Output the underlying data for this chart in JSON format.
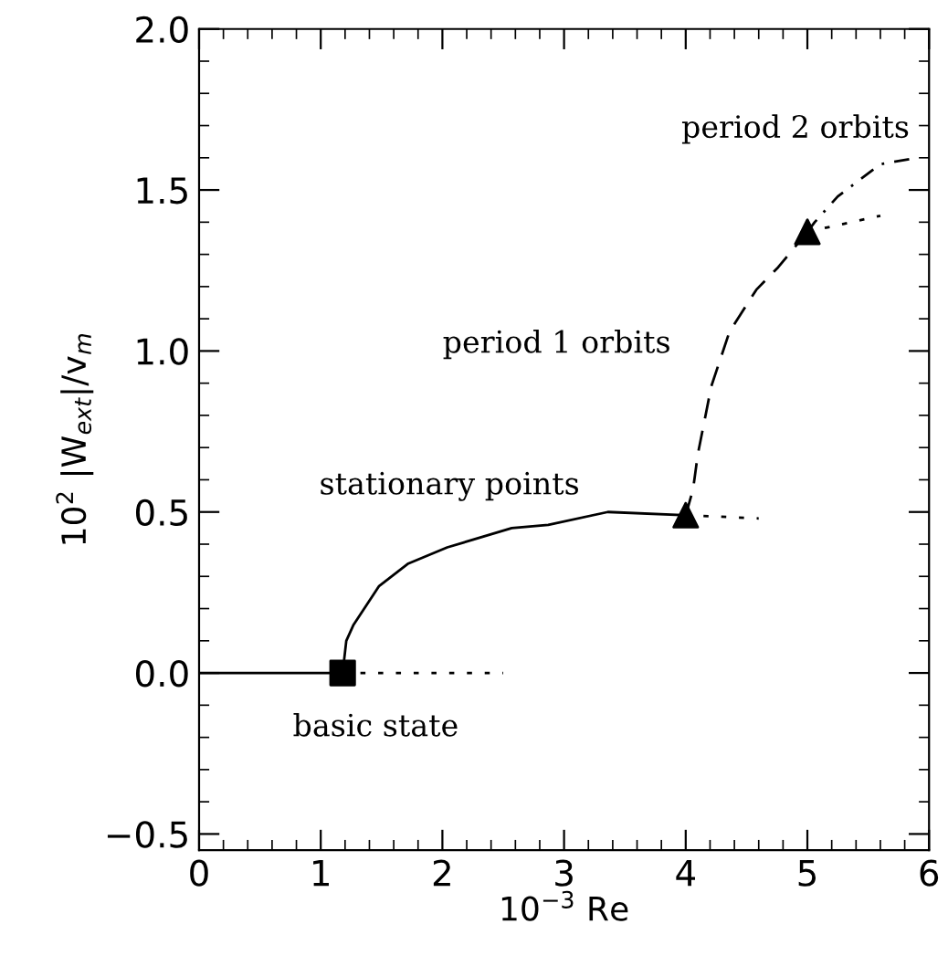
{
  "chart_data": {
    "type": "line",
    "xlabel": "10$^{−3}$ Re",
    "ylabel": "10$^{2}$ |W$_{ext}$|/v$_{m}$",
    "xlim": [
      0,
      6
    ],
    "ylim": [
      -0.55,
      2.0
    ],
    "xticks": [
      0,
      1,
      2,
      3,
      4,
      5,
      6
    ],
    "yticks": [
      {
        "value": -0.5,
        "label": "−0.5"
      },
      {
        "value": 0,
        "label": "0.0"
      },
      {
        "value": 0.5,
        "label": "0.5"
      },
      {
        "value": 1.0,
        "label": "1.0"
      },
      {
        "value": 1.5,
        "label": "1.5"
      },
      {
        "value": 2.0,
        "label": "2.0"
      }
    ],
    "grid": false,
    "legend": false,
    "series": [
      {
        "color": "#000000",
        "line_style": "solid",
        "x": [
          0,
          1.18
        ],
        "values": [
          0,
          0
        ]
      },
      {
        "color": "#000000",
        "line_style": "dotted",
        "x": [
          1.18,
          2.5
        ],
        "values": [
          0,
          0
        ]
      },
      {
        "color": "#000000",
        "line_style": "solid",
        "x": [
          1.18,
          1.21,
          1.27,
          1.48,
          1.72,
          2.04,
          2.57,
          2.87,
          3.36,
          4.0
        ],
        "values": [
          0,
          0.1,
          0.15,
          0.27,
          0.34,
          0.39,
          0.45,
          0.46,
          0.5,
          0.49
        ]
      },
      {
        "color": "#000000",
        "line_style": "dotted",
        "x": [
          4.0,
          4.6
        ],
        "values": [
          0.49,
          0.48
        ]
      },
      {
        "color": "#000000",
        "line_style": "dashed",
        "x": [
          4.0,
          4.06,
          4.1,
          4.21,
          4.36,
          4.58,
          4.76,
          5.0
        ],
        "values": [
          0.49,
          0.57,
          0.68,
          0.89,
          1.06,
          1.19,
          1.26,
          1.37
        ]
      },
      {
        "color": "#000000",
        "line_style": "dotted",
        "x": [
          5.0,
          5.6
        ],
        "values": [
          1.37,
          1.42
        ]
      },
      {
        "color": "#000000",
        "line_style": "dashdot",
        "x": [
          5.0,
          5.06,
          5.25,
          5.6,
          5.9
        ],
        "values": [
          1.37,
          1.4,
          1.48,
          1.58,
          1.6
        ]
      },
      {
        "type": "scatter",
        "marker": "square",
        "color": "#000000",
        "x": [
          1.18
        ],
        "values": [
          0
        ]
      },
      {
        "type": "scatter",
        "marker": "triangle",
        "color": "#000000",
        "x": [
          4.0,
          5.0
        ],
        "values": [
          0.49,
          1.37
        ]
      }
    ],
    "annotations": [
      "period 2 orbits",
      "period 1 orbits",
      "stationary points",
      "basic state"
    ]
  }
}
